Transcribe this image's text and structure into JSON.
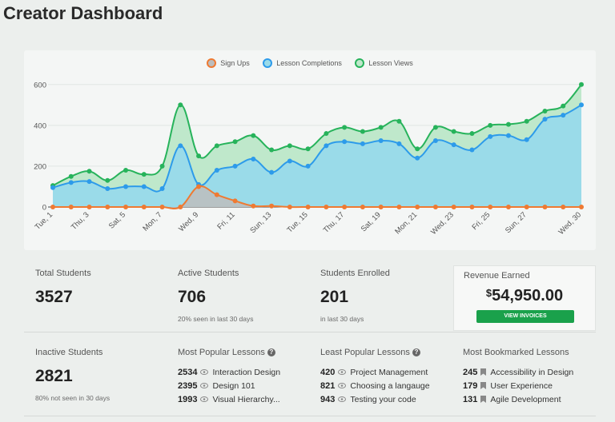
{
  "page": {
    "title": "Creator Dashboard"
  },
  "chart_data": {
    "type": "area",
    "title": "",
    "xlabel": "",
    "ylabel": "",
    "ylim": [
      0,
      650
    ],
    "y_ticks": [
      0,
      200,
      400,
      600
    ],
    "grid": true,
    "legend_position": "top-center",
    "categories": [
      "Tue, 1",
      "Wed, 2",
      "Thu, 3",
      "Fri, 4",
      "Sat, 5",
      "Sun, 6",
      "Mon, 7",
      "Tue, 8",
      "Wed, 9",
      "Thu, 10",
      "Fri, 11",
      "Sat, 12",
      "Sun, 13",
      "Mon, 14",
      "Tue, 15",
      "Wed, 16",
      "Thu, 17",
      "Fri, 18",
      "Sat, 19",
      "Sun, 20",
      "Mon, 21",
      "Tue, 22",
      "Wed, 23",
      "Thu, 24",
      "Fri, 25",
      "Sat, 26",
      "Sun, 27",
      "Mon, 28",
      "Tue, 29",
      "Wed, 30"
    ],
    "x_tick_labels": [
      "Tue, 1",
      "Thu, 3",
      "Sat, 5",
      "Mon, 7",
      "Wed, 9",
      "Fri, 11",
      "Sun, 13",
      "Tue, 15",
      "Thu, 17",
      "Sat, 19",
      "Mon, 21",
      "Wed, 23",
      "Fri, 25",
      "Sun, 27",
      "Wed, 30"
    ],
    "series": [
      {
        "name": "Sign Ups",
        "color": "#ef7a32",
        "fill": "#bdbdbd",
        "values": [
          0,
          0,
          0,
          0,
          0,
          0,
          0,
          0,
          100,
          60,
          30,
          5,
          5,
          0,
          0,
          0,
          0,
          0,
          0,
          0,
          0,
          0,
          0,
          0,
          0,
          0,
          0,
          0,
          0,
          0
        ]
      },
      {
        "name": "Lesson Completions",
        "color": "#2d9bea",
        "fill": "#9adbe9",
        "values": [
          95,
          120,
          125,
          90,
          100,
          100,
          90,
          300,
          110,
          180,
          200,
          235,
          170,
          225,
          200,
          300,
          320,
          310,
          325,
          310,
          240,
          325,
          305,
          280,
          345,
          350,
          330,
          430,
          450,
          500
        ]
      },
      {
        "name": "Lesson Views",
        "color": "#27b35b",
        "fill": "#bfe8cb",
        "values": [
          105,
          150,
          175,
          130,
          180,
          160,
          200,
          500,
          250,
          300,
          320,
          350,
          280,
          300,
          285,
          360,
          390,
          370,
          390,
          420,
          285,
          390,
          370,
          360,
          400,
          405,
          420,
          470,
          495,
          600
        ]
      }
    ]
  },
  "stats": {
    "total_students": {
      "label": "Total Students",
      "value": "3527"
    },
    "active_students": {
      "label": "Active Students",
      "value": "706",
      "note": "20% seen in last 30 days"
    },
    "students_enrolled": {
      "label": "Students Enrolled",
      "value": "201",
      "note": "in last 30 days"
    },
    "revenue": {
      "label": "Revenue Earned",
      "currency": "$",
      "value": "54,950.00",
      "button": "VIEW INVOICES",
      "button_color": "#1aa14b"
    },
    "inactive_students": {
      "label": "Inactive Students",
      "value": "2821",
      "note": "80% not seen in 30 days"
    }
  },
  "most_popular": {
    "label": "Most Popular Lessons",
    "items": [
      {
        "count": "2534",
        "title": "Interaction Design"
      },
      {
        "count": "2395",
        "title": "Design 101"
      },
      {
        "count": "1993",
        "title": "Visual Hierarchy..."
      }
    ]
  },
  "least_popular": {
    "label": "Least Popular Lessons",
    "items": [
      {
        "count": "420",
        "title": "Project Management"
      },
      {
        "count": "821",
        "title": "Choosing a langauge"
      },
      {
        "count": "943",
        "title": "Testing your code"
      }
    ]
  },
  "most_bookmarked": {
    "label": "Most Bookmarked Lessons",
    "items": [
      {
        "count": "245",
        "title": "Accessibility in Design"
      },
      {
        "count": "179",
        "title": "User Experience"
      },
      {
        "count": "131",
        "title": "Agile Development"
      }
    ]
  }
}
